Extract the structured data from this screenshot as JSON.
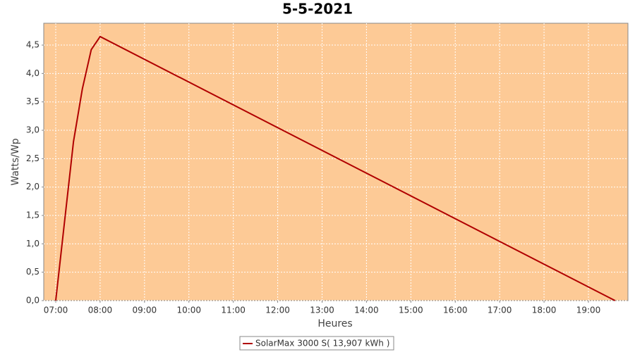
{
  "chart_data": {
    "type": "line",
    "title": "5-5-2021",
    "x_label": "Heures",
    "y_label": "Watts/Wp",
    "x": [
      7.0,
      7.4,
      7.6,
      7.8,
      8.0,
      19.6
    ],
    "series": [
      {
        "name": "SolarMax 3000 S( 13,907 kWh )",
        "color": "#b00000",
        "values": [
          0,
          2.8,
          3.73,
          4.42,
          4.65,
          0
        ]
      }
    ],
    "xlim": [
      6.73,
      19.89
    ],
    "ylim": [
      0,
      4.885
    ],
    "xticks": [
      {
        "value": 7,
        "label": "07:00"
      },
      {
        "value": 8,
        "label": "08:00"
      },
      {
        "value": 9,
        "label": "09:00"
      },
      {
        "value": 10,
        "label": "10:00"
      },
      {
        "value": 11,
        "label": "11:00"
      },
      {
        "value": 12,
        "label": "12:00"
      },
      {
        "value": 13,
        "label": "13:00"
      },
      {
        "value": 14,
        "label": "14:00"
      },
      {
        "value": 15,
        "label": "15:00"
      },
      {
        "value": 16,
        "label": "16:00"
      },
      {
        "value": 17,
        "label": "17:00"
      },
      {
        "value": 18,
        "label": "18:00"
      },
      {
        "value": 19,
        "label": "19:00"
      }
    ],
    "yticks": [
      {
        "value": 0,
        "label": "0,0"
      },
      {
        "value": 0.5,
        "label": "0,5"
      },
      {
        "value": 1,
        "label": "1,0"
      },
      {
        "value": 1.5,
        "label": "1,5"
      },
      {
        "value": 2,
        "label": "2,0"
      },
      {
        "value": 2.5,
        "label": "2,5"
      },
      {
        "value": 3,
        "label": "3,0"
      },
      {
        "value": 3.5,
        "label": "3,5"
      },
      {
        "value": 4,
        "label": "4,0"
      },
      {
        "value": 4.5,
        "label": "4,5"
      }
    ],
    "grid": true,
    "background": "#fdca96",
    "legend": "bottom"
  }
}
